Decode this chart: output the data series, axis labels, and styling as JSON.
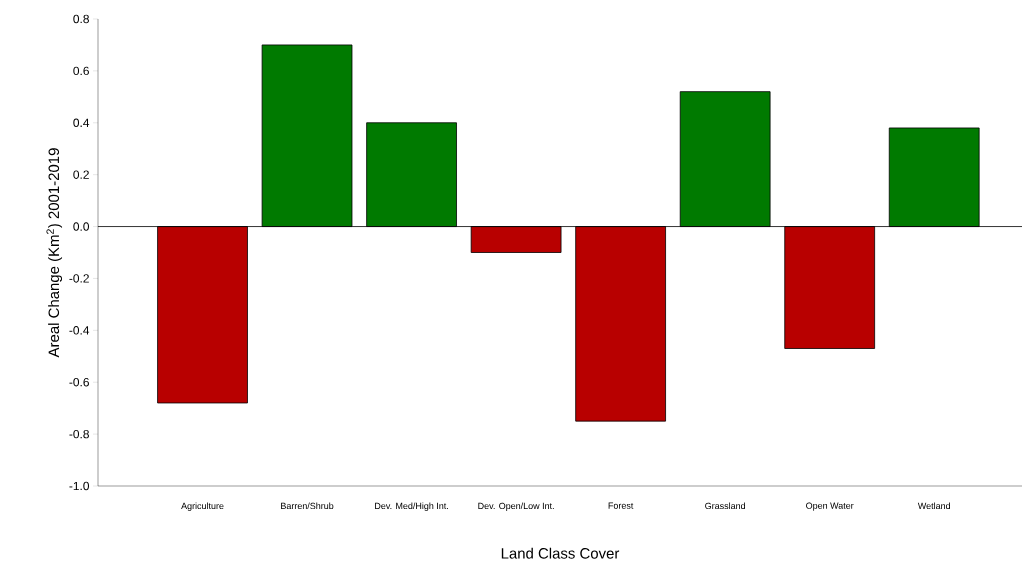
{
  "chart_data": {
    "type": "bar",
    "xlabel": "Land Class Cover",
    "ylabel": "Areal Change (Km$^{2}$) 2001-2019",
    "categories": [
      "Agriculture",
      "Barren/Shrub",
      "Dev. Med/High Int.",
      "Dev. Open/Low Int.",
      "Forest",
      "Grassland",
      "Open Water",
      "Wetland"
    ],
    "values": [
      -0.68,
      0.7,
      0.4,
      -0.1,
      -0.75,
      0.52,
      -0.47,
      0.38
    ],
    "colors": [
      "#b80000",
      "#007a00",
      "#007a00",
      "#b80000",
      "#b80000",
      "#007a00",
      "#b80000",
      "#007a00"
    ],
    "ylim": [
      -1.0,
      0.8
    ],
    "yticks": [
      {
        "value": -1.0,
        "label": "-1.0"
      },
      {
        "value": -0.8,
        "label": "-0.8"
      },
      {
        "value": -0.6,
        "label": "-0.6"
      },
      {
        "value": -0.4,
        "label": "-0.4"
      },
      {
        "value": -0.2,
        "label": "-0.2"
      },
      {
        "value": 0,
        "label": "0.0"
      },
      {
        "value": 0.2,
        "label": "0.2"
      },
      {
        "value": 0.4,
        "label": "0.4"
      },
      {
        "value": 0.6,
        "label": "0.6"
      },
      {
        "value": 0.8,
        "label": "0.8"
      }
    ],
    "ref_lines": [
      {
        "axis": "y",
        "value": 0
      }
    ]
  }
}
